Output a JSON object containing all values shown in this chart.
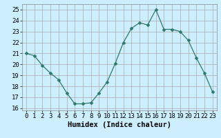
{
  "xlabel": "Humidex (Indice chaleur)",
  "x": [
    0,
    1,
    2,
    3,
    4,
    5,
    6,
    7,
    8,
    9,
    10,
    11,
    12,
    13,
    14,
    15,
    16,
    17,
    18,
    19,
    20,
    21,
    22,
    23
  ],
  "y": [
    21.0,
    20.8,
    19.9,
    19.2,
    18.6,
    17.4,
    16.4,
    16.4,
    16.5,
    17.4,
    18.4,
    20.1,
    22.0,
    23.3,
    23.8,
    23.6,
    25.0,
    23.2,
    23.2,
    23.0,
    22.2,
    20.6,
    19.2,
    17.5
  ],
  "line_color": "#2d7a6b",
  "marker": "D",
  "marker_size": 2.5,
  "bg_color": "#cceeff",
  "grid_color": "#aaaaaa",
  "ylim": [
    15.8,
    25.5
  ],
  "yticks": [
    16,
    17,
    18,
    19,
    20,
    21,
    22,
    23,
    24,
    25
  ],
  "xticks": [
    0,
    1,
    2,
    3,
    4,
    5,
    6,
    7,
    8,
    9,
    10,
    11,
    12,
    13,
    14,
    15,
    16,
    17,
    18,
    19,
    20,
    21,
    22,
    23
  ],
  "xlabel_fontsize": 7.5,
  "tick_fontsize": 6.5
}
